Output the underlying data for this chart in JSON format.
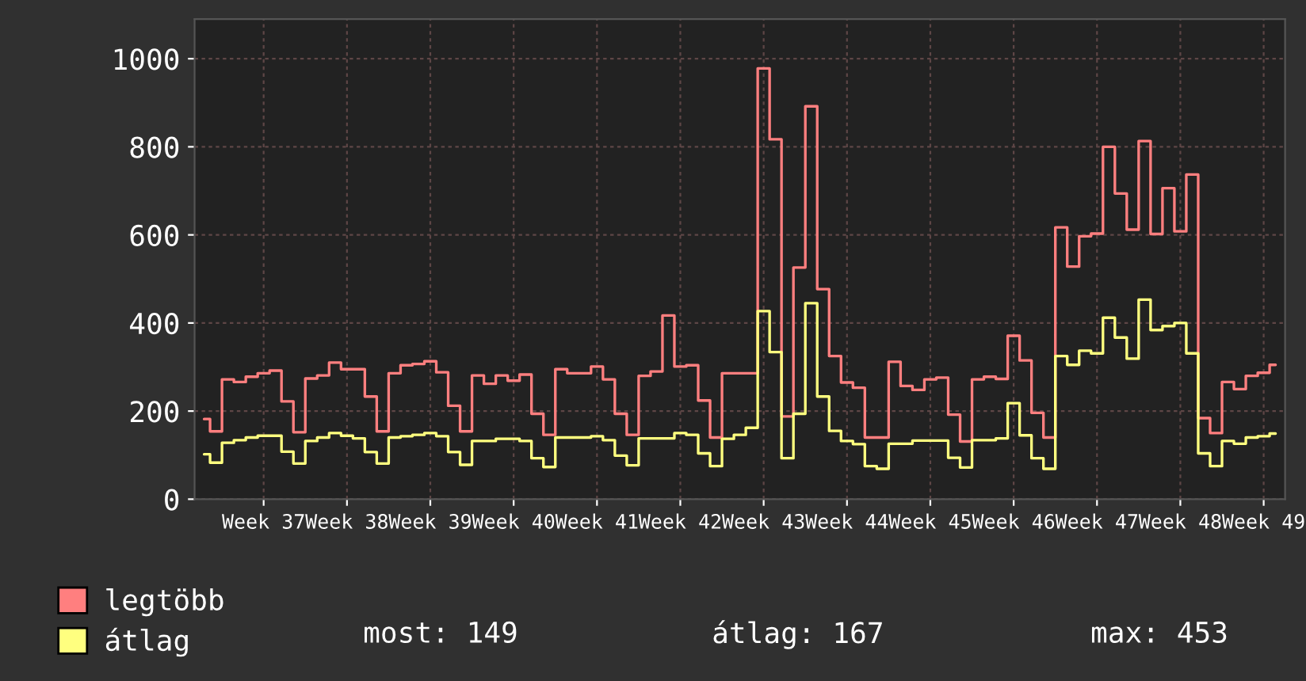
{
  "chart_data": {
    "type": "step",
    "categories": [
      null,
      null,
      null,
      null,
      null,
      "Week 37",
      null,
      null,
      null,
      null,
      null,
      null,
      "Week 38",
      null,
      null,
      null,
      null,
      null,
      null,
      "Week 39",
      null,
      null,
      null,
      null,
      null,
      null,
      "Week 40",
      null,
      null,
      null,
      null,
      null,
      null,
      "Week 41",
      null,
      null,
      null,
      null,
      null,
      null,
      "Week 42",
      null,
      null,
      null,
      null,
      null,
      null,
      "Week 43",
      null,
      null,
      null,
      null,
      null,
      null,
      "Week 44",
      null,
      null,
      null,
      null,
      null,
      null,
      "Week 45",
      null,
      null,
      null,
      null,
      null,
      null,
      "Week 46",
      null,
      null,
      null,
      null,
      null,
      null,
      "Week 47",
      null,
      null,
      null,
      null,
      null,
      null,
      "Week 48",
      null,
      null,
      null,
      null,
      null,
      null,
      "Week 49",
      null
    ],
    "series": [
      {
        "name": "legtöbb",
        "color": "#ff7f7f",
        "values": [
          182,
          154,
          272,
          266,
          278,
          286,
          292,
          222,
          152,
          274,
          281,
          310,
          295,
          295,
          233,
          154,
          286,
          304,
          307,
          313,
          288,
          212,
          154,
          281,
          262,
          281,
          269,
          283,
          194,
          146,
          295,
          286,
          286,
          301,
          272,
          194,
          146,
          280,
          290,
          417,
          301,
          304,
          224,
          140,
          286,
          286,
          286,
          978,
          817,
          188,
          526,
          892,
          477,
          325,
          265,
          253,
          140,
          140,
          312,
          257,
          248,
          272,
          276,
          192,
          131,
          272,
          278,
          273,
          371,
          315,
          196,
          140,
          617,
          528,
          597,
          603,
          800,
          694,
          612,
          813,
          602,
          706,
          608,
          737,
          184,
          150,
          266,
          250,
          280,
          287,
          305
        ]
      },
      {
        "name": "átlag",
        "color": "#ffff7f",
        "values": [
          102,
          83,
          128,
          134,
          140,
          144,
          144,
          108,
          81,
          132,
          140,
          150,
          144,
          138,
          107,
          81,
          140,
          143,
          146,
          150,
          143,
          107,
          78,
          132,
          132,
          137,
          137,
          132,
          93,
          73,
          140,
          140,
          140,
          143,
          134,
          99,
          77,
          138,
          138,
          138,
          150,
          146,
          104,
          75,
          137,
          146,
          162,
          427,
          334,
          93,
          194,
          445,
          233,
          155,
          132,
          125,
          75,
          69,
          126,
          126,
          133,
          133,
          133,
          94,
          72,
          134,
          134,
          138,
          218,
          145,
          93,
          69,
          325,
          305,
          337,
          331,
          412,
          367,
          319,
          453,
          384,
          393,
          400,
          331,
          104,
          75,
          132,
          126,
          140,
          143,
          149
        ]
      }
    ],
    "ylim": [
      0,
      1090
    ],
    "yticks": [
      0,
      200,
      400,
      600,
      800,
      1000
    ],
    "grid": true,
    "legend": "bottom",
    "annotations": [
      "most: 149",
      "átlag: 167",
      "max: 453"
    ]
  }
}
